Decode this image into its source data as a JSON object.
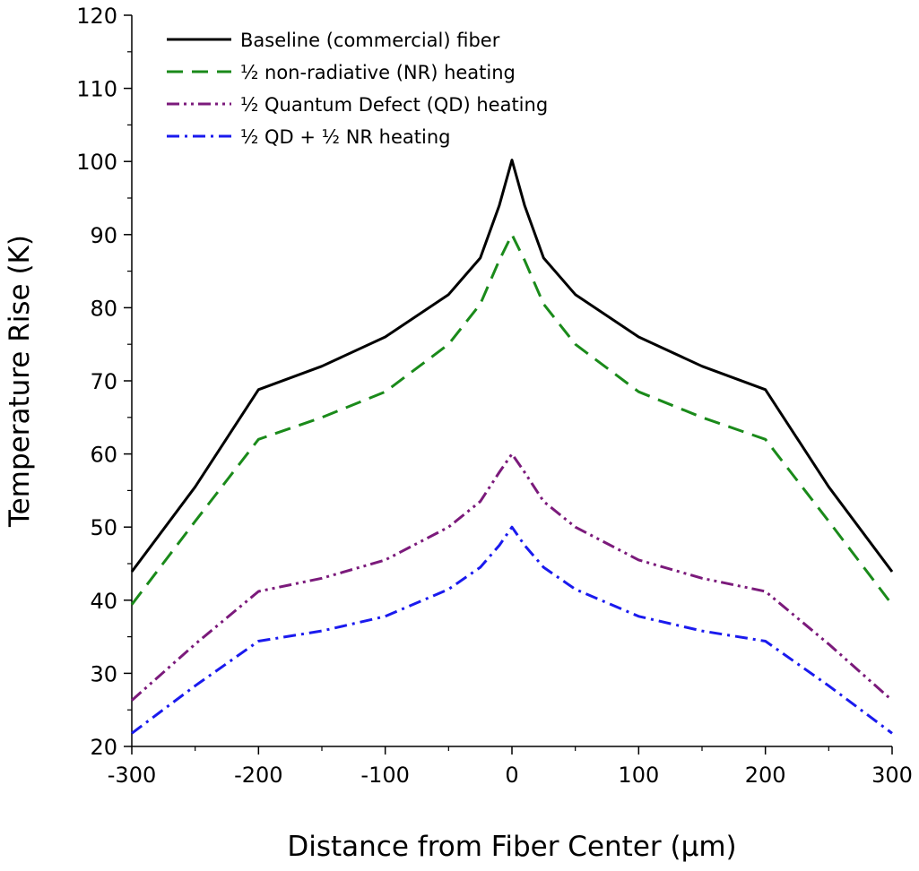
{
  "chart_data": {
    "type": "line",
    "title": "",
    "xlabel": "Distance from Fiber Center (µm)",
    "ylabel": "Temperature Rise (K)",
    "xlim": [
      -300,
      300
    ],
    "ylim": [
      20,
      120
    ],
    "xticks": [
      -300,
      -200,
      -100,
      0,
      100,
      200,
      300
    ],
    "yticks": [
      20,
      30,
      40,
      50,
      60,
      70,
      80,
      90,
      100,
      110,
      120
    ],
    "grid": false,
    "legend": "top-left",
    "x": [
      -300,
      -250,
      -200,
      -150,
      -100,
      -50,
      -25,
      -10,
      0,
      10,
      25,
      50,
      100,
      150,
      200,
      250,
      300
    ],
    "series": [
      {
        "name": "Baseline (commercial) fiber",
        "color": "#000000",
        "dash": "solid",
        "values": [
          43.9,
          55.5,
          68.8,
          72.0,
          76.0,
          81.8,
          86.8,
          94.0,
          100.2,
          94.0,
          86.8,
          81.8,
          76.0,
          72.0,
          68.8,
          55.5,
          43.9
        ]
      },
      {
        "name": "½ non-radiative (NR) heating",
        "color": "#1a8a1a",
        "dash": "dash",
        "values": [
          39.4,
          50.8,
          62.0,
          65.0,
          68.5,
          75.0,
          80.5,
          86.5,
          90.0,
          86.5,
          80.5,
          75.0,
          68.5,
          65.0,
          62.0,
          50.8,
          39.4
        ]
      },
      {
        "name": "½ Quantum Defect (QD) heating",
        "color": "#7b1a7b",
        "dash": "dash-dot-dot",
        "values": [
          26.3,
          34.0,
          41.2,
          43.0,
          45.5,
          50.0,
          53.5,
          57.5,
          60.0,
          57.5,
          53.5,
          50.0,
          45.5,
          43.0,
          41.2,
          34.0,
          26.3
        ]
      },
      {
        "name": "½ QD + ½ NR heating",
        "color": "#1a1aee",
        "dash": "dash-dot",
        "values": [
          21.8,
          28.3,
          34.4,
          35.8,
          37.8,
          41.5,
          44.5,
          47.5,
          50.0,
          47.5,
          44.5,
          41.5,
          37.8,
          35.8,
          34.4,
          28.3,
          21.8
        ]
      }
    ]
  }
}
